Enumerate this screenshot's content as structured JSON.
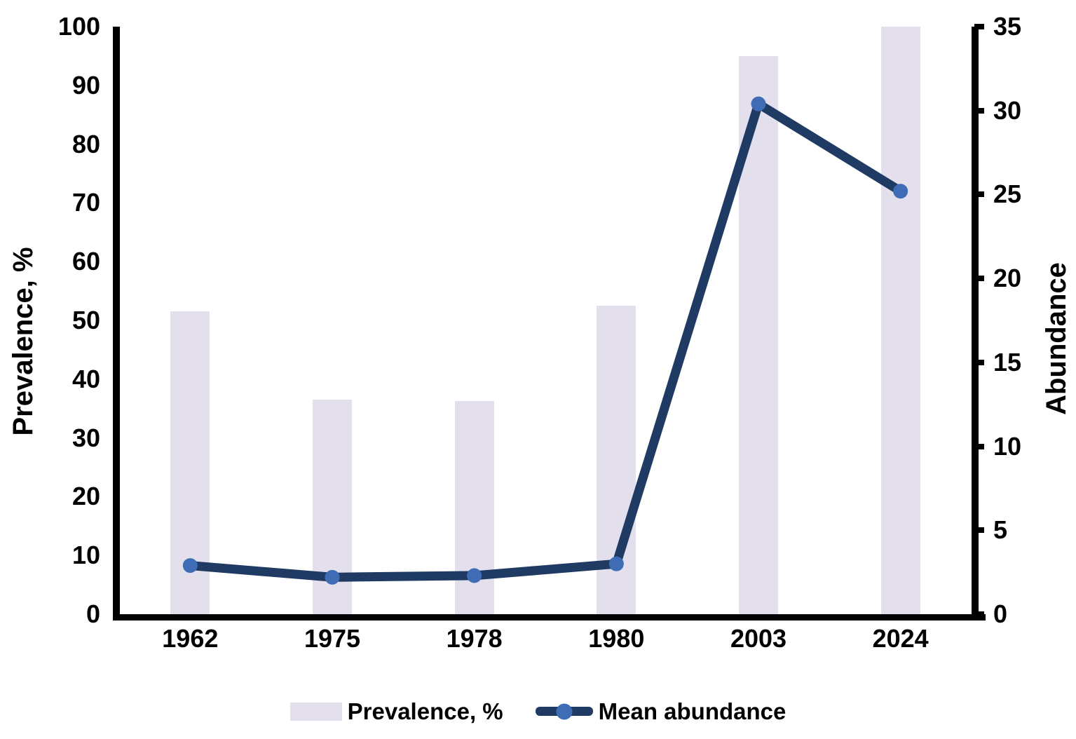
{
  "chart_data": {
    "type": "bar",
    "subtype": "combo-bar-line-dual-axis",
    "categories": [
      "1962",
      "1975",
      "1978",
      "1980",
      "2003",
      "2024"
    ],
    "series": [
      {
        "name": "Prevalence, %",
        "type": "bar",
        "axis": "left",
        "values": [
          51.5,
          36.5,
          36.3,
          52.5,
          95,
          100
        ],
        "color": "#E4DFEC"
      },
      {
        "name": "Mean abundance",
        "type": "line",
        "axis": "right",
        "values": [
          2.9,
          2.2,
          2.3,
          3.0,
          30.4,
          25.2
        ],
        "line_color": "#1F3B63",
        "marker_color": "#3E6DB5"
      }
    ],
    "left_axis": {
      "label": "Prevalence, %",
      "min": 0,
      "max": 100,
      "ticks": [
        0,
        10,
        20,
        30,
        40,
        50,
        60,
        70,
        80,
        90,
        100
      ]
    },
    "right_axis": {
      "label": "Abundance",
      "min": 0,
      "max": 35,
      "ticks": [
        0,
        5,
        10,
        15,
        20,
        25,
        30,
        35
      ]
    },
    "grid": false,
    "legend_position": "bottom-center",
    "legend": [
      {
        "label": "Prevalence, %",
        "marker": "bar-swatch"
      },
      {
        "label": "Mean abundance",
        "marker": "line-dot"
      }
    ],
    "colors": {
      "bar": "#E4DFEC",
      "line": "#1F3B63",
      "marker": "#3E6DB5",
      "axis": "#000000",
      "background": "#FFFFFF"
    }
  }
}
